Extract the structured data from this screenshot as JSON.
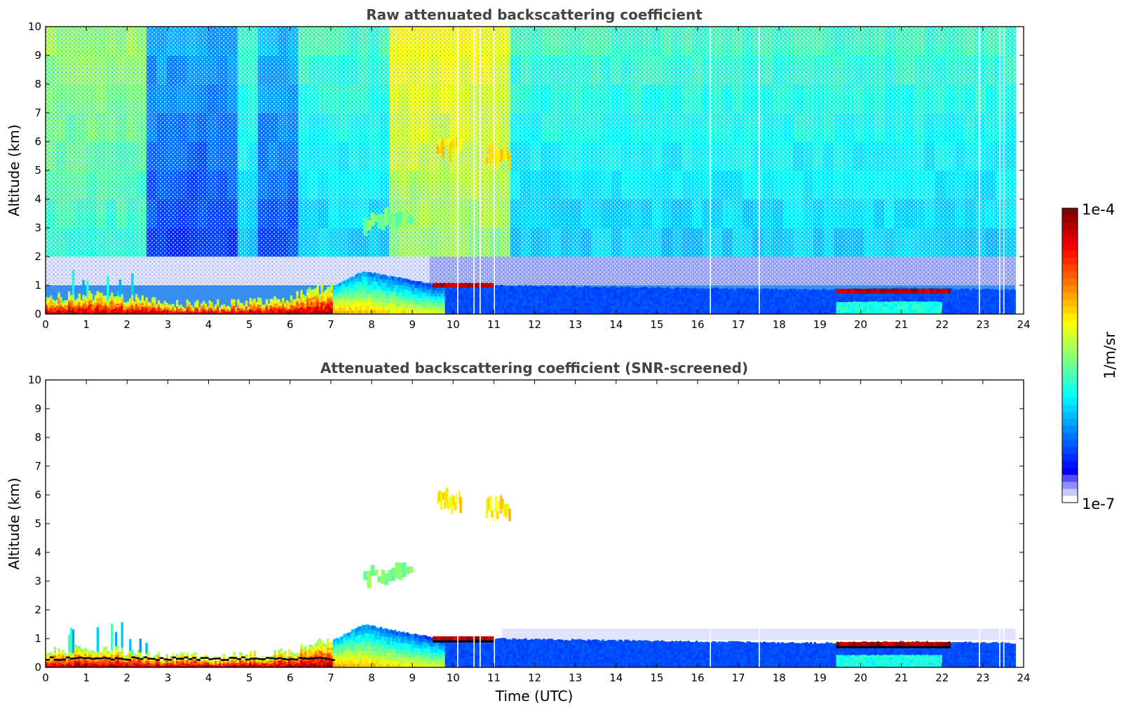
{
  "chart_data": [
    {
      "type": "heatmap",
      "title": "Raw attenuated backscattering coefficient",
      "xlabel": "",
      "ylabel": "Altitude (km)",
      "xlim": [
        0,
        24
      ],
      "ylim": [
        0,
        10
      ],
      "x_ticks": [
        "0",
        "1",
        "2",
        "3",
        "4",
        "5",
        "6",
        "7",
        "8",
        "9",
        "10",
        "11",
        "12",
        "13",
        "14",
        "15",
        "16",
        "17",
        "18",
        "19",
        "20",
        "21",
        "22",
        "23",
        "24"
      ],
      "y_ticks": [
        "0",
        "1",
        "2",
        "3",
        "4",
        "5",
        "6",
        "7",
        "8",
        "9",
        "10"
      ],
      "data_extent_hours": [
        0,
        23.8
      ],
      "features": {
        "boundary_layer_top_km": [
          [
            0,
            0.5
          ],
          [
            1,
            0.6
          ],
          [
            2,
            0.5
          ],
          [
            3,
            0.3
          ],
          [
            4,
            0.3
          ],
          [
            5,
            0.35
          ],
          [
            6,
            0.5
          ],
          [
            7,
            0.9
          ],
          [
            7.8,
            1.5
          ],
          [
            8.5,
            1.3
          ],
          [
            9.5,
            1.05
          ],
          [
            11,
            1.0
          ],
          [
            16,
            0.9
          ],
          [
            19,
            0.85
          ],
          [
            21,
            0.9
          ],
          [
            23.8,
            0.85
          ]
        ],
        "cloud_layers": [
          {
            "time_start": 9.6,
            "time_end": 10.2,
            "alt_km": 5.8
          },
          {
            "time_start": 10.8,
            "time_end": 11.4,
            "alt_km": 5.5
          },
          {
            "time_start": 7.8,
            "time_end": 9.0,
            "alt_km": 3.2
          },
          {
            "time_start": 19.4,
            "time_end": 22.2,
            "alt_km": 0.8
          },
          {
            "time_start": 9.5,
            "time_end": 11.0,
            "alt_km": 1.0
          }
        ],
        "data_gaps_hours": [
          10.1,
          10.5,
          10.65,
          11.0,
          16.3,
          17.5,
          22.9,
          23.4,
          23.5
        ]
      }
    },
    {
      "type": "heatmap",
      "title": "Attenuated backscattering coefficient (SNR-screened)",
      "xlabel": "Time (UTC)",
      "ylabel": "Altitude (km)",
      "xlim": [
        0,
        24
      ],
      "ylim": [
        0,
        10
      ],
      "x_ticks": [
        "0",
        "1",
        "2",
        "3",
        "4",
        "5",
        "6",
        "7",
        "8",
        "9",
        "10",
        "11",
        "12",
        "13",
        "14",
        "15",
        "16",
        "17",
        "18",
        "19",
        "20",
        "21",
        "22",
        "23",
        "24"
      ],
      "y_ticks": [
        "0",
        "1",
        "2",
        "3",
        "4",
        "5",
        "6",
        "7",
        "8",
        "9",
        "10"
      ],
      "data_extent_hours": [
        0,
        23.8
      ],
      "screened": true
    }
  ],
  "colorbar": {
    "label": "1/m/sr",
    "max_label": "1e-4",
    "min_label": "1e-7",
    "scale": "log",
    "colormap": "jet",
    "low_colors": [
      "#ffffff",
      "#c8c8ff",
      "#8f8fff",
      "#5050ff"
    ],
    "colors": [
      "#00007f",
      "#0000ff",
      "#007fff",
      "#00ffff",
      "#7fff7f",
      "#ffff00",
      "#ff7f00",
      "#ff0000",
      "#7f0000"
    ]
  }
}
